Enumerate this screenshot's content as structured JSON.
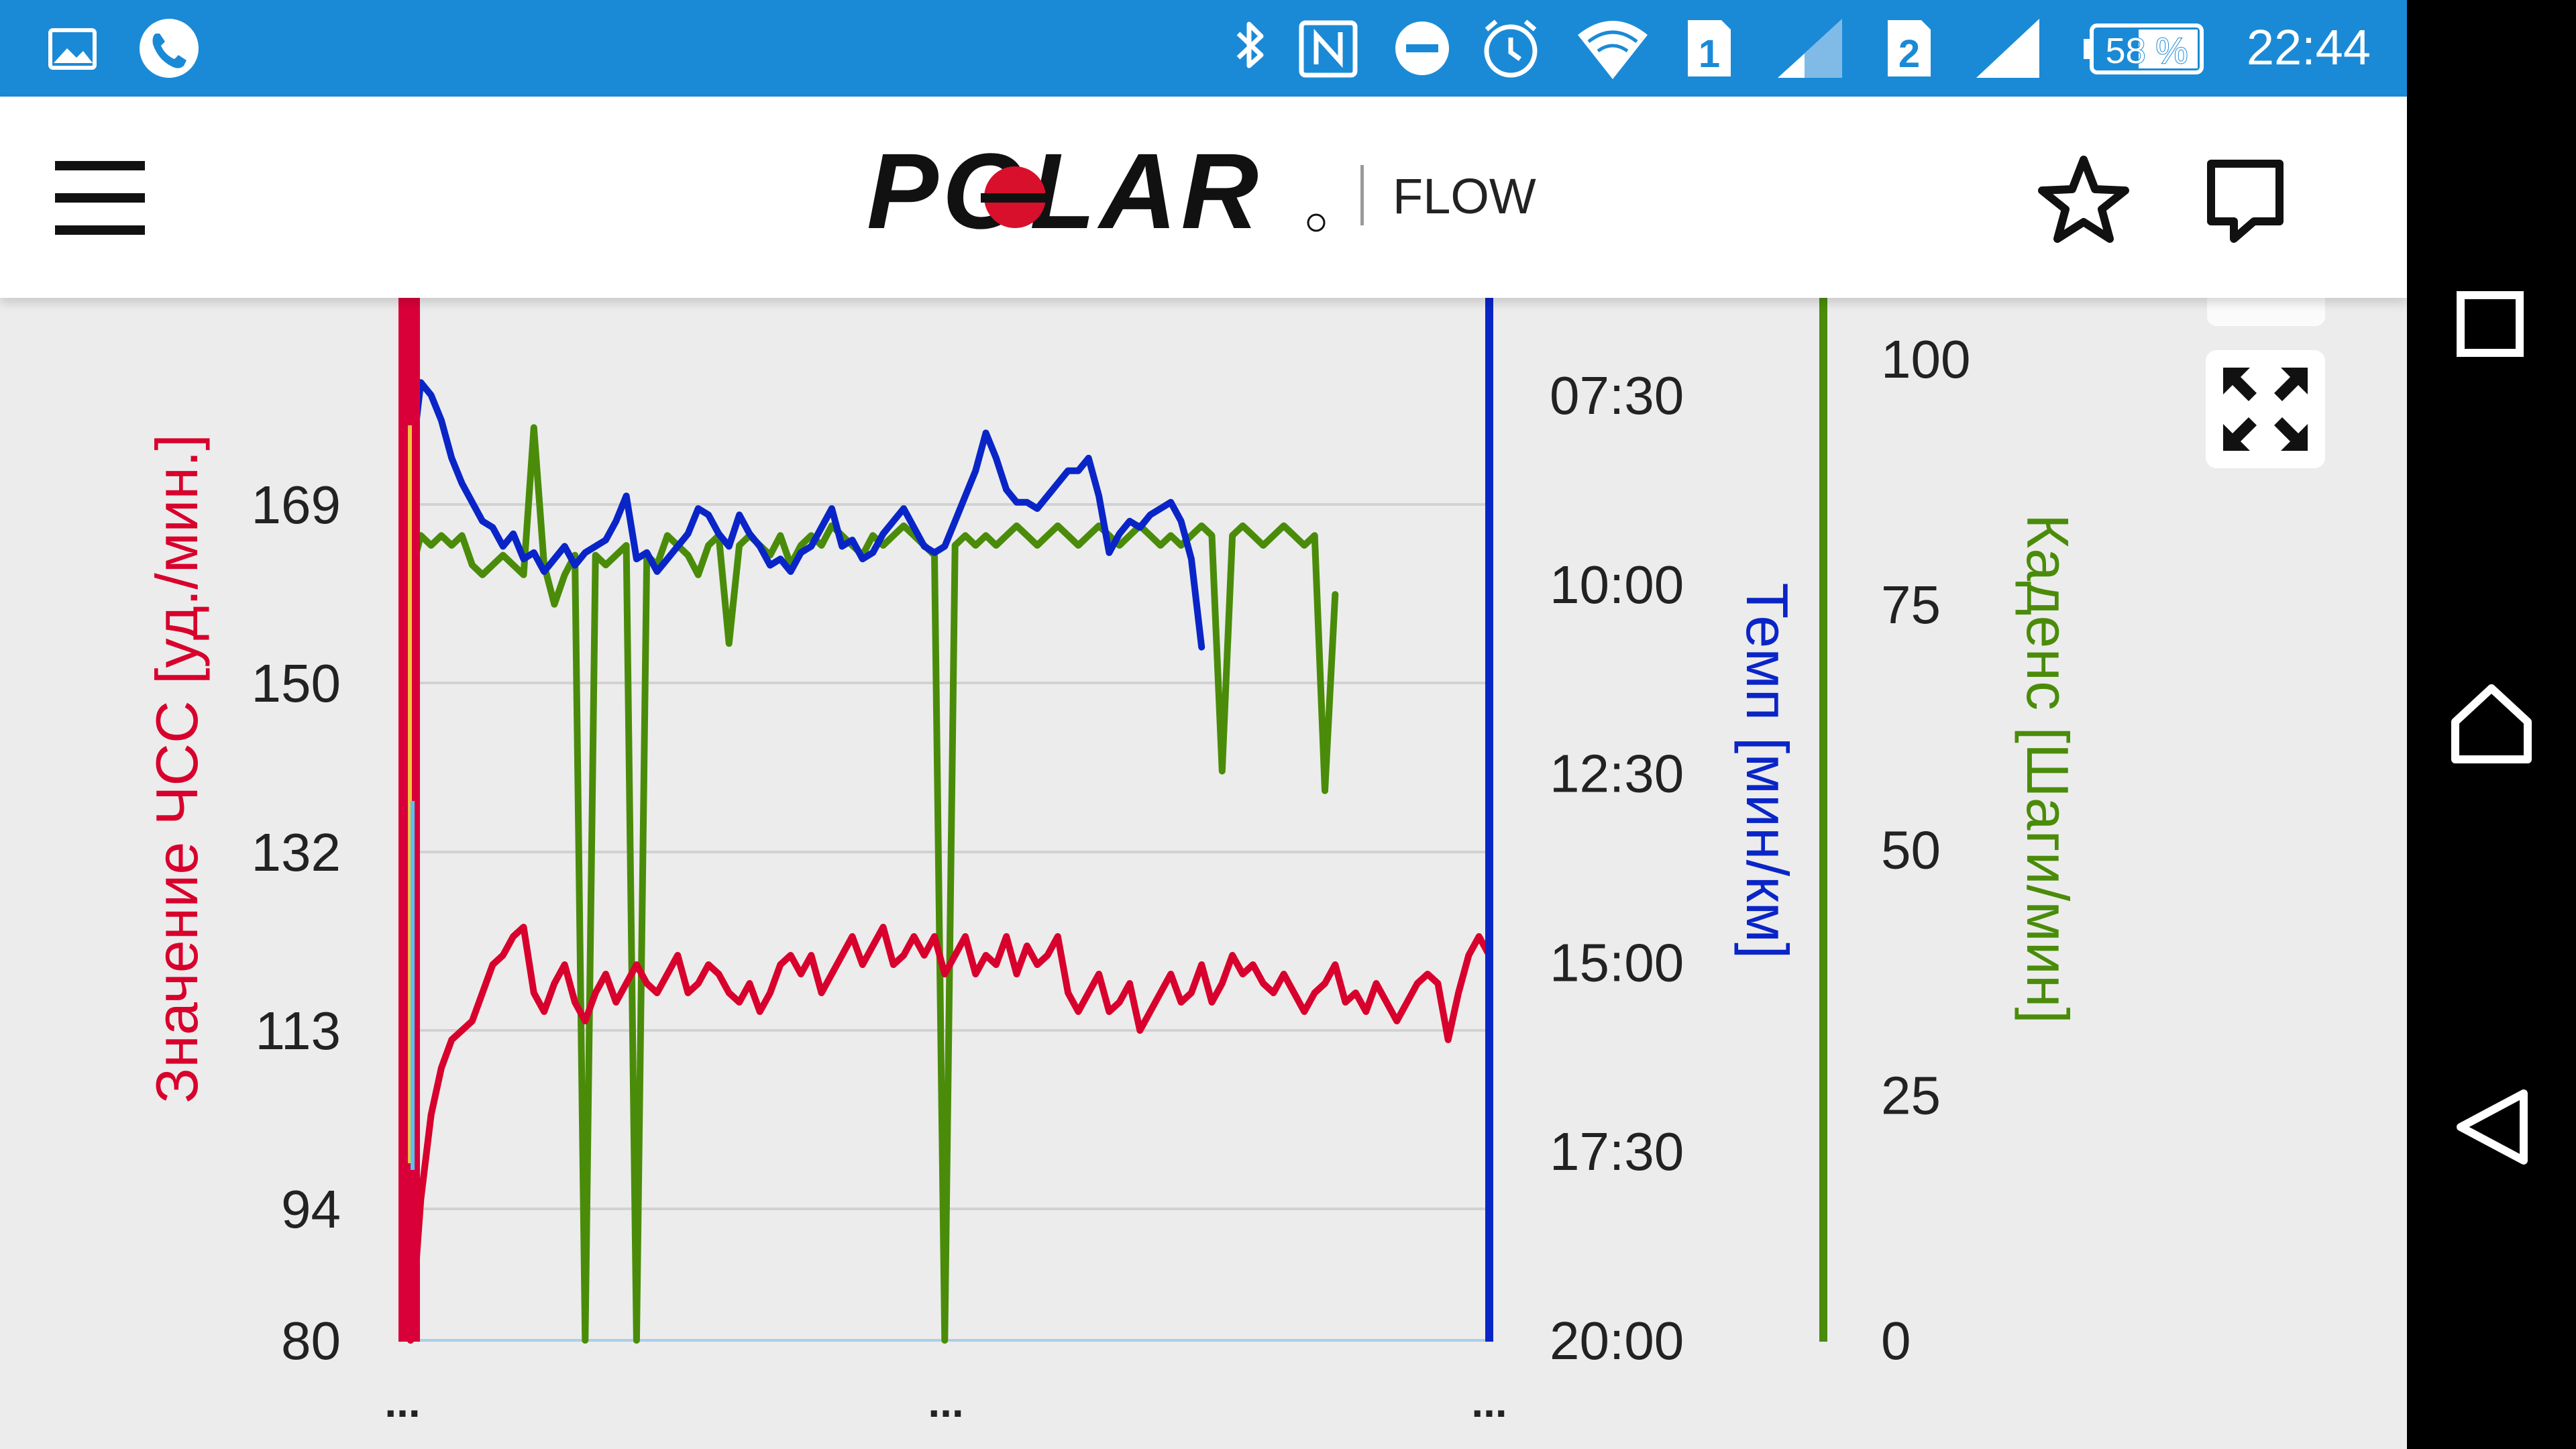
{
  "status_bar": {
    "icons": [
      "image-notification-icon",
      "phone-call-icon",
      "bluetooth-icon",
      "nfc-icon",
      "do-not-disturb-icon",
      "alarm-icon",
      "wifi-icon",
      "sim1-icon",
      "signal1-icon",
      "sim2-icon",
      "signal2-icon"
    ],
    "sim1": "1",
    "sim2": "2",
    "battery": "58 %",
    "time": "22:44"
  },
  "app_bar": {
    "brand": "POLAR",
    "product": "FLOW",
    "icons": [
      "menu-icon",
      "star-icon",
      "comment-icon"
    ]
  },
  "chart_controls": {
    "icons": [
      "fullscreen-icon"
    ]
  },
  "nav_bar": {
    "icons": [
      "recents-icon",
      "home-icon",
      "back-icon"
    ]
  },
  "chart_data": {
    "type": "line",
    "colors": {
      "hr": "#d8002c",
      "pace": "#0a25c7",
      "cadence": "#4a8c0a"
    },
    "axes": {
      "hr": {
        "label": "Значение ЧСС [уд./мин.]",
        "ticks": [
          "169",
          "150",
          "132",
          "113",
          "94",
          "80"
        ],
        "range": [
          80,
          178
        ]
      },
      "pace": {
        "label": "Темп [мин/км]",
        "ticks": [
          "07:30",
          "10:00",
          "12:30",
          "15:00",
          "17:30",
          "20:00"
        ],
        "range": [
          "20:00",
          "07:30"
        ]
      },
      "cadence": {
        "label": "Каденс [Шаги/мин]",
        "ticks": [
          "100",
          "75",
          "50",
          "25",
          "0"
        ],
        "range": [
          0,
          100
        ]
      }
    },
    "x_ticks": [
      "...",
      "...",
      "..."
    ],
    "grid": true,
    "series": [
      {
        "axis": "hr",
        "points": [
          [
            0,
            80
          ],
          [
            1,
            95
          ],
          [
            2,
            104
          ],
          [
            3,
            109
          ],
          [
            4,
            112
          ],
          [
            5,
            113
          ],
          [
            6,
            114
          ],
          [
            7,
            117
          ],
          [
            8,
            120
          ],
          [
            9,
            121
          ],
          [
            10,
            123
          ],
          [
            11,
            124
          ],
          [
            12,
            117
          ],
          [
            13,
            115
          ],
          [
            14,
            118
          ],
          [
            15,
            120
          ],
          [
            16,
            116
          ],
          [
            17,
            114
          ],
          [
            18,
            117
          ],
          [
            19,
            119
          ],
          [
            20,
            116
          ],
          [
            21,
            118
          ],
          [
            22,
            120
          ],
          [
            23,
            118
          ],
          [
            24,
            117
          ],
          [
            25,
            119
          ],
          [
            26,
            121
          ],
          [
            27,
            117
          ],
          [
            28,
            118
          ],
          [
            29,
            120
          ],
          [
            30,
            119
          ],
          [
            31,
            117
          ],
          [
            32,
            116
          ],
          [
            33,
            118
          ],
          [
            34,
            115
          ],
          [
            35,
            117
          ],
          [
            36,
            120
          ],
          [
            37,
            121
          ],
          [
            38,
            119
          ],
          [
            39,
            121
          ],
          [
            40,
            117
          ],
          [
            41,
            119
          ],
          [
            42,
            121
          ],
          [
            43,
            123
          ],
          [
            44,
            120
          ],
          [
            45,
            122
          ],
          [
            46,
            124
          ],
          [
            47,
            120
          ],
          [
            48,
            121
          ],
          [
            49,
            123
          ],
          [
            50,
            121
          ],
          [
            51,
            123
          ],
          [
            52,
            119
          ],
          [
            53,
            121
          ],
          [
            54,
            123
          ],
          [
            55,
            119
          ],
          [
            56,
            121
          ],
          [
            57,
            120
          ],
          [
            58,
            123
          ],
          [
            59,
            119
          ],
          [
            60,
            122
          ],
          [
            61,
            120
          ],
          [
            62,
            121
          ],
          [
            63,
            123
          ],
          [
            64,
            117
          ],
          [
            65,
            115
          ],
          [
            66,
            117
          ],
          [
            67,
            119
          ],
          [
            68,
            115
          ],
          [
            69,
            116
          ],
          [
            70,
            118
          ],
          [
            71,
            113
          ],
          [
            72,
            115
          ],
          [
            73,
            117
          ],
          [
            74,
            119
          ],
          [
            75,
            116
          ],
          [
            76,
            117
          ],
          [
            77,
            120
          ],
          [
            78,
            116
          ],
          [
            79,
            118
          ],
          [
            80,
            121
          ],
          [
            81,
            119
          ],
          [
            82,
            120
          ],
          [
            83,
            118
          ],
          [
            84,
            117
          ],
          [
            85,
            119
          ],
          [
            86,
            117
          ],
          [
            87,
            115
          ],
          [
            88,
            117
          ],
          [
            89,
            118
          ],
          [
            90,
            120
          ],
          [
            91,
            116
          ],
          [
            92,
            117
          ],
          [
            93,
            115
          ],
          [
            94,
            118
          ],
          [
            95,
            116
          ],
          [
            96,
            114
          ],
          [
            97,
            116
          ],
          [
            98,
            118
          ],
          [
            99,
            119
          ],
          [
            100,
            118
          ],
          [
            101,
            112
          ],
          [
            102,
            117
          ],
          [
            103,
            121
          ],
          [
            104,
            123
          ],
          [
            105,
            121
          ]
        ]
      },
      {
        "axis": "pace",
        "points": [
          [
            0,
            "08:30"
          ],
          [
            1,
            "07:20"
          ],
          [
            2,
            "07:30"
          ],
          [
            3,
            "07:50"
          ],
          [
            4,
            "08:20"
          ],
          [
            5,
            "08:40"
          ],
          [
            6,
            "08:55"
          ],
          [
            7,
            "09:10"
          ],
          [
            8,
            "09:15"
          ],
          [
            9,
            "09:30"
          ],
          [
            10,
            "09:20"
          ],
          [
            11,
            "09:40"
          ],
          [
            12,
            "09:35"
          ],
          [
            13,
            "09:50"
          ],
          [
            14,
            "09:40"
          ],
          [
            15,
            "09:30"
          ],
          [
            16,
            "09:45"
          ],
          [
            17,
            "09:35"
          ],
          [
            18,
            "09:30"
          ],
          [
            19,
            "09:25"
          ],
          [
            20,
            "09:10"
          ],
          [
            21,
            "08:50"
          ],
          [
            22,
            "09:40"
          ],
          [
            23,
            "09:35"
          ],
          [
            24,
            "09:50"
          ],
          [
            25,
            "09:40"
          ],
          [
            26,
            "09:30"
          ],
          [
            27,
            "09:20"
          ],
          [
            28,
            "09:00"
          ],
          [
            29,
            "09:05"
          ],
          [
            30,
            "09:20"
          ],
          [
            31,
            "09:30"
          ],
          [
            32,
            "09:05"
          ],
          [
            33,
            "09:20"
          ],
          [
            34,
            "09:30"
          ],
          [
            35,
            "09:45"
          ],
          [
            36,
            "09:40"
          ],
          [
            37,
            "09:50"
          ],
          [
            38,
            "09:35"
          ],
          [
            39,
            "09:30"
          ],
          [
            40,
            "09:15"
          ],
          [
            41,
            "09:00"
          ],
          [
            42,
            "09:30"
          ],
          [
            43,
            "09:25"
          ],
          [
            44,
            "09:40"
          ],
          [
            45,
            "09:35"
          ],
          [
            46,
            "09:20"
          ],
          [
            47,
            "09:10"
          ],
          [
            48,
            "09:00"
          ],
          [
            49,
            "09:15"
          ],
          [
            50,
            "09:30"
          ],
          [
            51,
            "09:35"
          ],
          [
            52,
            "09:30"
          ],
          [
            53,
            "09:10"
          ],
          [
            54,
            "08:50"
          ],
          [
            55,
            "08:30"
          ],
          [
            56,
            "08:00"
          ],
          [
            57,
            "08:20"
          ],
          [
            58,
            "08:45"
          ],
          [
            59,
            "08:55"
          ],
          [
            60,
            "08:55"
          ],
          [
            61,
            "09:00"
          ],
          [
            62,
            "08:50"
          ],
          [
            63,
            "08:40"
          ],
          [
            64,
            "08:30"
          ],
          [
            65,
            "08:30"
          ],
          [
            66,
            "08:20"
          ],
          [
            67,
            "08:50"
          ],
          [
            68,
            "09:35"
          ],
          [
            69,
            "09:20"
          ],
          [
            70,
            "09:10"
          ],
          [
            71,
            "09:15"
          ],
          [
            72,
            "09:05"
          ],
          [
            73,
            "09:00"
          ],
          [
            74,
            "08:55"
          ],
          [
            75,
            "09:10"
          ],
          [
            76,
            "09:40"
          ],
          [
            77,
            "10:50"
          ]
        ]
      },
      {
        "axis": "cadence",
        "points": [
          [
            0,
            0
          ],
          [
            0.5,
            80
          ],
          [
            1,
            82
          ],
          [
            2,
            81
          ],
          [
            3,
            82
          ],
          [
            4,
            81
          ],
          [
            5,
            82
          ],
          [
            6,
            79
          ],
          [
            7,
            78
          ],
          [
            8,
            79
          ],
          [
            9,
            80
          ],
          [
            10,
            79
          ],
          [
            11,
            78
          ],
          [
            12,
            93
          ],
          [
            13,
            79
          ],
          [
            14,
            75
          ],
          [
            15,
            78
          ],
          [
            16,
            80
          ],
          [
            17,
            0
          ],
          [
            18,
            80
          ],
          [
            19,
            79
          ],
          [
            20,
            80
          ],
          [
            21,
            81
          ],
          [
            22,
            0
          ],
          [
            23,
            80
          ],
          [
            24,
            79
          ],
          [
            25,
            82
          ],
          [
            26,
            81
          ],
          [
            27,
            80
          ],
          [
            28,
            78
          ],
          [
            29,
            81
          ],
          [
            30,
            82
          ],
          [
            31,
            71
          ],
          [
            32,
            81
          ],
          [
            33,
            82
          ],
          [
            34,
            81
          ],
          [
            35,
            80
          ],
          [
            36,
            82
          ],
          [
            37,
            79
          ],
          [
            38,
            81
          ],
          [
            39,
            82
          ],
          [
            40,
            81
          ],
          [
            41,
            83
          ],
          [
            42,
            82
          ],
          [
            43,
            81
          ],
          [
            44,
            80
          ],
          [
            45,
            82
          ],
          [
            46,
            81
          ],
          [
            47,
            82
          ],
          [
            48,
            83
          ],
          [
            49,
            82
          ],
          [
            50,
            81
          ],
          [
            51,
            80
          ],
          [
            52,
            0
          ],
          [
            53,
            81
          ],
          [
            54,
            82
          ],
          [
            55,
            81
          ],
          [
            56,
            82
          ],
          [
            57,
            81
          ],
          [
            58,
            82
          ],
          [
            59,
            83
          ],
          [
            60,
            82
          ],
          [
            61,
            81
          ],
          [
            62,
            82
          ],
          [
            63,
            83
          ],
          [
            64,
            82
          ],
          [
            65,
            81
          ],
          [
            66,
            82
          ],
          [
            67,
            83
          ],
          [
            68,
            82
          ],
          [
            69,
            81
          ],
          [
            70,
            82
          ],
          [
            71,
            83
          ],
          [
            72,
            82
          ],
          [
            73,
            81
          ],
          [
            74,
            82
          ],
          [
            75,
            81
          ],
          [
            76,
            82
          ],
          [
            77,
            83
          ],
          [
            78,
            82
          ],
          [
            79,
            58
          ],
          [
            80,
            82
          ],
          [
            81,
            83
          ],
          [
            82,
            82
          ],
          [
            83,
            81
          ],
          [
            84,
            82
          ],
          [
            85,
            83
          ],
          [
            86,
            82
          ],
          [
            87,
            81
          ],
          [
            88,
            82
          ],
          [
            89,
            56
          ],
          [
            90,
            76
          ]
        ]
      }
    ]
  }
}
